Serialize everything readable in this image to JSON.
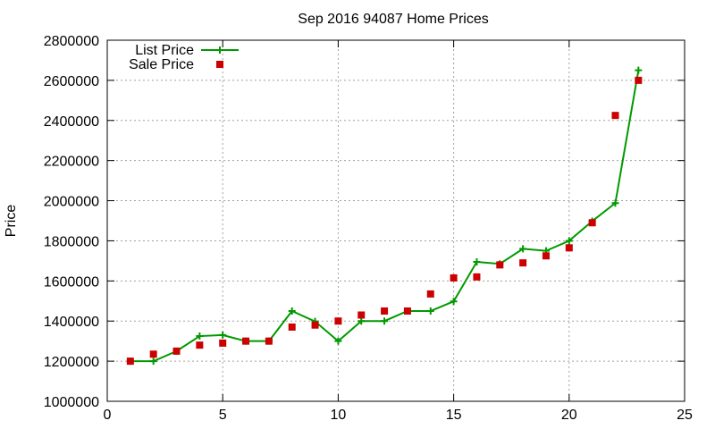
{
  "chart_data": {
    "type": "scatter",
    "title": "Sep 2016 94087 Home Prices",
    "xlabel": "",
    "ylabel": "Price",
    "xlim": [
      0,
      25
    ],
    "ylim": [
      1000000,
      2800000
    ],
    "x_ticks": [
      "0",
      "5",
      "10",
      "15",
      "20",
      "25"
    ],
    "y_ticks": [
      "1000000",
      "1200000",
      "1400000",
      "1600000",
      "1800000",
      "2000000",
      "2200000",
      "2400000",
      "2600000",
      "2800000"
    ],
    "grid": true,
    "legend_position": "top-left",
    "series": [
      {
        "name": "List Price",
        "style": "line-with-plus-markers",
        "color": "#009900",
        "x": [
          1,
          2,
          3,
          4,
          5,
          6,
          7,
          8,
          9,
          10,
          11,
          12,
          13,
          14,
          15,
          16,
          17,
          18,
          19,
          20,
          21,
          22,
          23
        ],
        "values": [
          1200000,
          1200000,
          1250000,
          1325000,
          1330000,
          1300000,
          1300000,
          1450000,
          1398000,
          1300000,
          1400000,
          1400000,
          1450000,
          1450000,
          1498000,
          1695000,
          1685000,
          1760000,
          1750000,
          1800000,
          1898000,
          1988000,
          2650000
        ]
      },
      {
        "name": "Sale Price",
        "style": "square-markers",
        "color": "#cc0000",
        "x": [
          1,
          2,
          3,
          4,
          5,
          6,
          7,
          8,
          9,
          10,
          11,
          12,
          13,
          14,
          15,
          16,
          17,
          18,
          19,
          20,
          21,
          22,
          23
        ],
        "values": [
          1200000,
          1235000,
          1250000,
          1280000,
          1290000,
          1300000,
          1300000,
          1370000,
          1380000,
          1400000,
          1430000,
          1450000,
          1450000,
          1535000,
          1615000,
          1620000,
          1680000,
          1690000,
          1725000,
          1765000,
          1890000,
          2425000,
          2600000
        ]
      }
    ]
  }
}
